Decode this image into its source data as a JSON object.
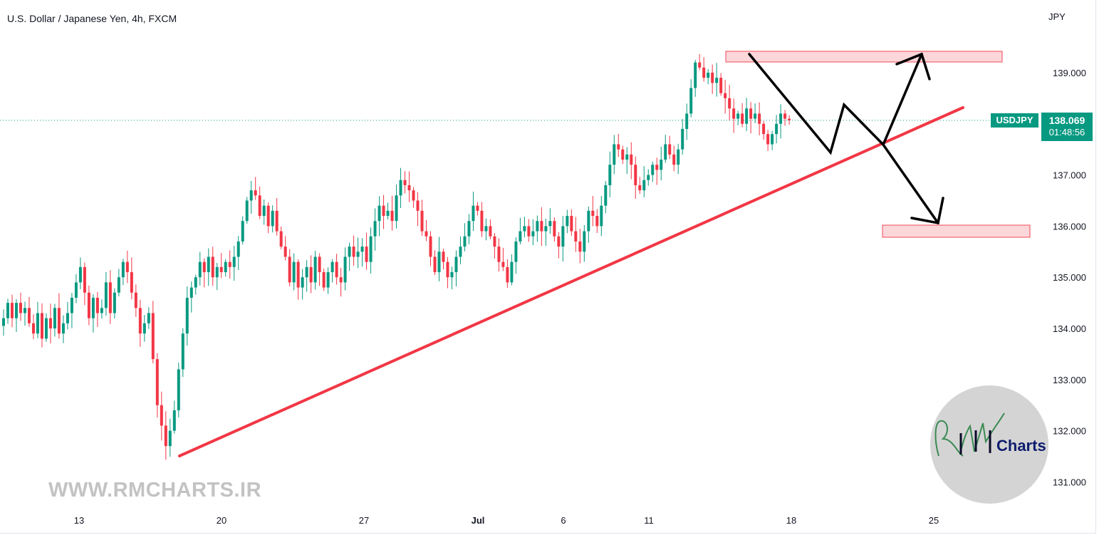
{
  "header": {
    "title": "U.S. Dollar / Japanese Yen, 4h, FXCM",
    "currency": "JPY"
  },
  "watermark": "WWW.RMCHARTS.IR",
  "logo": {
    "text": "Charts",
    "monogram": "RM"
  },
  "price_badge": {
    "symbol": "USDJPY",
    "price": "138.069",
    "countdown": "01:48:56"
  },
  "colors": {
    "up": "#089981",
    "down": "#f23645",
    "trendline": "#f23645",
    "zone_fill": "#fbd3d6",
    "zone_stroke": "#f23645",
    "arrow": "#000000"
  },
  "chart_data": {
    "type": "candlestick",
    "title": "U.S. Dollar / Japanese Yen, 4h, FXCM",
    "ylabel": "JPY",
    "ylim": [
      130.5,
      139.9
    ],
    "y_ticks": [
      "139.000",
      "137.000",
      "136.000",
      "135.000",
      "134.000",
      "133.000",
      "132.000",
      "131.000"
    ],
    "x_ticks": [
      "13",
      "20",
      "27",
      "Jul",
      "6",
      "11",
      "18",
      "25"
    ],
    "last_price": 138.069,
    "candle_closes": [
      134.2,
      134.5,
      134.2,
      134.5,
      134.3,
      134.4,
      134.1,
      133.9,
      134.3,
      133.8,
      134.2,
      134.0,
      134.4,
      133.9,
      134.1,
      134.3,
      134.6,
      134.9,
      135.2,
      134.7,
      134.2,
      134.6,
      134.3,
      134.4,
      134.9,
      134.3,
      134.7,
      135.0,
      135.3,
      135.1,
      134.7,
      134.4,
      133.9,
      134.1,
      134.3,
      133.4,
      132.5,
      132.1,
      131.7,
      132.0,
      132.4,
      133.2,
      133.9,
      134.6,
      134.8,
      135.0,
      135.3,
      135.1,
      135.4,
      135.0,
      135.2,
      135.1,
      135.3,
      135.2,
      135.4,
      135.7,
      136.1,
      136.5,
      136.7,
      136.6,
      136.2,
      136.4,
      136.0,
      136.3,
      135.9,
      135.6,
      135.4,
      134.9,
      135.3,
      134.8,
      135.0,
      135.2,
      134.9,
      135.4,
      135.1,
      134.8,
      135.1,
      135.3,
      135.0,
      134.9,
      135.4,
      135.6,
      135.4,
      135.5,
      135.6,
      135.3,
      135.8,
      136.1,
      136.4,
      136.2,
      136.3,
      136.1,
      136.6,
      136.9,
      136.8,
      136.7,
      136.5,
      136.3,
      135.9,
      135.8,
      135.4,
      135.1,
      135.5,
      135.3,
      135.0,
      135.1,
      135.4,
      135.6,
      135.8,
      136.1,
      136.4,
      136.3,
      135.9,
      136.0,
      135.8,
      135.6,
      135.3,
      135.2,
      134.9,
      135.3,
      135.7,
      135.9,
      136.0,
      135.8,
      135.9,
      136.1,
      135.9,
      136.0,
      136.1,
      135.8,
      135.6,
      136.0,
      136.2,
      135.9,
      135.7,
      135.5,
      135.9,
      136.3,
      136.2,
      136.0,
      136.4,
      136.8,
      137.2,
      137.6,
      137.5,
      137.3,
      137.4,
      137.2,
      136.8,
      136.7,
      136.9,
      137.0,
      137.2,
      137.1,
      137.3,
      137.6,
      137.4,
      137.2,
      137.5,
      137.9,
      138.2,
      138.7,
      139.2,
      139.1,
      138.9,
      139.0,
      138.8,
      138.9,
      138.6,
      138.5,
      138.3,
      138.1,
      138.2,
      138.0,
      138.3,
      138.1,
      138.2,
      138.0,
      137.8,
      137.6,
      137.8,
      138.0,
      138.2,
      138.1,
      138.069
    ],
    "annotations": {
      "trendline": {
        "from": {
          "date": "2023-06-16",
          "price": 131.5
        },
        "to": {
          "date": "2023-07-26",
          "price": 138.3
        }
      },
      "resistance_zone": {
        "low": 139.2,
        "high": 139.4,
        "from_date": "2023-07-14",
        "to_date": "2023-07-26"
      },
      "target_zone": {
        "low": 135.8,
        "high": 136.05,
        "from_date": "2023-07-23",
        "to_date": "2023-07-27"
      },
      "projection_paths": [
        {
          "name": "decline-then-bounce",
          "points": [
            139.4,
            137.4,
            138.4,
            137.6,
            139.4
          ]
        },
        {
          "name": "breakdown-target",
          "points": [
            138.4,
            136.1
          ]
        }
      ]
    }
  }
}
